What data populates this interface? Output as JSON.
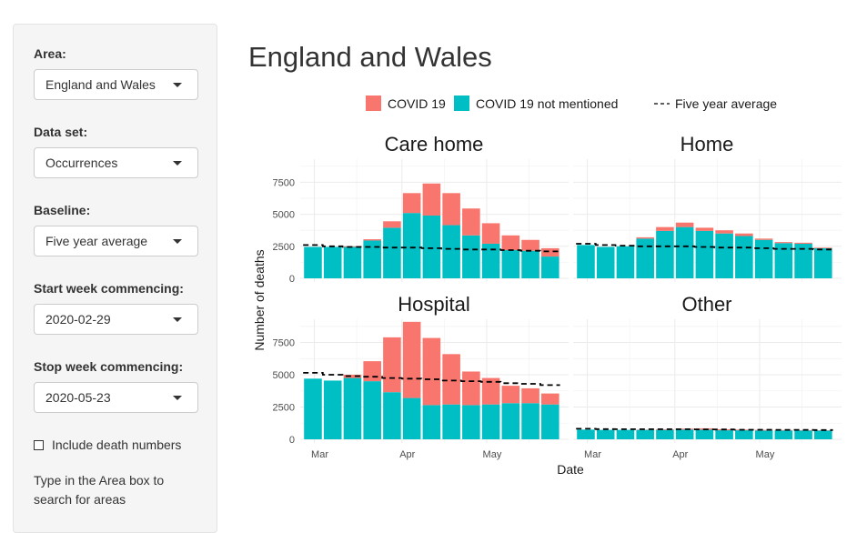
{
  "sidebar": {
    "area": {
      "label": "Area:",
      "value": "England and Wales"
    },
    "dataset": {
      "label": "Data set:",
      "value": "Occurrences"
    },
    "baseline": {
      "label": "Baseline:",
      "value": "Five year average"
    },
    "start_week": {
      "label": "Start week commencing:",
      "value": "2020-02-29"
    },
    "stop_week": {
      "label": "Stop week commencing:",
      "value": "2020-05-23"
    },
    "include_numbers": {
      "label": "Include death numbers",
      "checked": false
    },
    "help_text": "Type in the Area box to search for areas"
  },
  "page_title": "England and Wales",
  "colors": {
    "covid": "#F8766D",
    "non_covid": "#00BFC4",
    "baseline": "#000000",
    "grid": "#ebebeb"
  },
  "chart_data": {
    "type": "bar",
    "stacked": true,
    "facets": [
      "Care home",
      "Home",
      "Hospital",
      "Other"
    ],
    "xlabel": "Date",
    "ylabel": "Number of deaths",
    "x_ticks": [
      "Mar",
      "Apr",
      "May"
    ],
    "y_ticks": [
      0,
      2500,
      5000,
      7500
    ],
    "ylim": [
      0,
      9300
    ],
    "legend": {
      "position": "top",
      "entries": [
        "COVID 19",
        "COVID 19 not mentioned",
        "Five year average"
      ]
    },
    "weeks": [
      "2020-02-29",
      "2020-03-07",
      "2020-03-14",
      "2020-03-21",
      "2020-03-28",
      "2020-04-04",
      "2020-04-11",
      "2020-04-18",
      "2020-04-25",
      "2020-05-02",
      "2020-05-09",
      "2020-05-16",
      "2020-05-23"
    ],
    "series": [
      {
        "facet": "Care home",
        "non_covid": [
          2450,
          2450,
          2450,
          2950,
          3950,
          5100,
          4900,
          4150,
          3350,
          2700,
          2200,
          2150,
          1700
        ],
        "covid": [
          0,
          0,
          50,
          100,
          500,
          1550,
          2500,
          2500,
          2100,
          1600,
          1150,
          850,
          650
        ],
        "baseline": [
          2600,
          2500,
          2450,
          2450,
          2400,
          2400,
          2350,
          2300,
          2250,
          2250,
          2200,
          2150,
          2100
        ]
      },
      {
        "facet": "Home",
        "non_covid": [
          2600,
          2450,
          2500,
          3100,
          3700,
          4000,
          3700,
          3500,
          3300,
          3000,
          2750,
          2700,
          2350
        ],
        "covid": [
          0,
          0,
          0,
          100,
          300,
          350,
          250,
          250,
          200,
          100,
          80,
          80,
          50
        ],
        "baseline": [
          2700,
          2600,
          2550,
          2500,
          2500,
          2500,
          2450,
          2400,
          2400,
          2350,
          2300,
          2300,
          2250
        ]
      },
      {
        "facet": "Hospital",
        "non_covid": [
          4700,
          4550,
          4750,
          4500,
          3650,
          3200,
          2650,
          2700,
          2650,
          2700,
          2800,
          2800,
          2700
        ],
        "covid": [
          0,
          0,
          250,
          1550,
          4250,
          5900,
          5200,
          3900,
          2600,
          2050,
          1350,
          1150,
          850
        ],
        "baseline": [
          5150,
          5000,
          4900,
          4850,
          4750,
          4700,
          4650,
          4550,
          4500,
          4450,
          4350,
          4300,
          4200
        ]
      },
      {
        "facet": "Other",
        "non_covid": [
          750,
          730,
          730,
          730,
          730,
          750,
          750,
          700,
          700,
          680,
          680,
          680,
          680
        ],
        "covid": [
          0,
          0,
          0,
          20,
          50,
          80,
          100,
          80,
          50,
          50,
          40,
          30,
          20
        ],
        "baseline": [
          820,
          790,
          780,
          780,
          780,
          780,
          770,
          760,
          740,
          740,
          730,
          730,
          720
        ]
      }
    ]
  }
}
